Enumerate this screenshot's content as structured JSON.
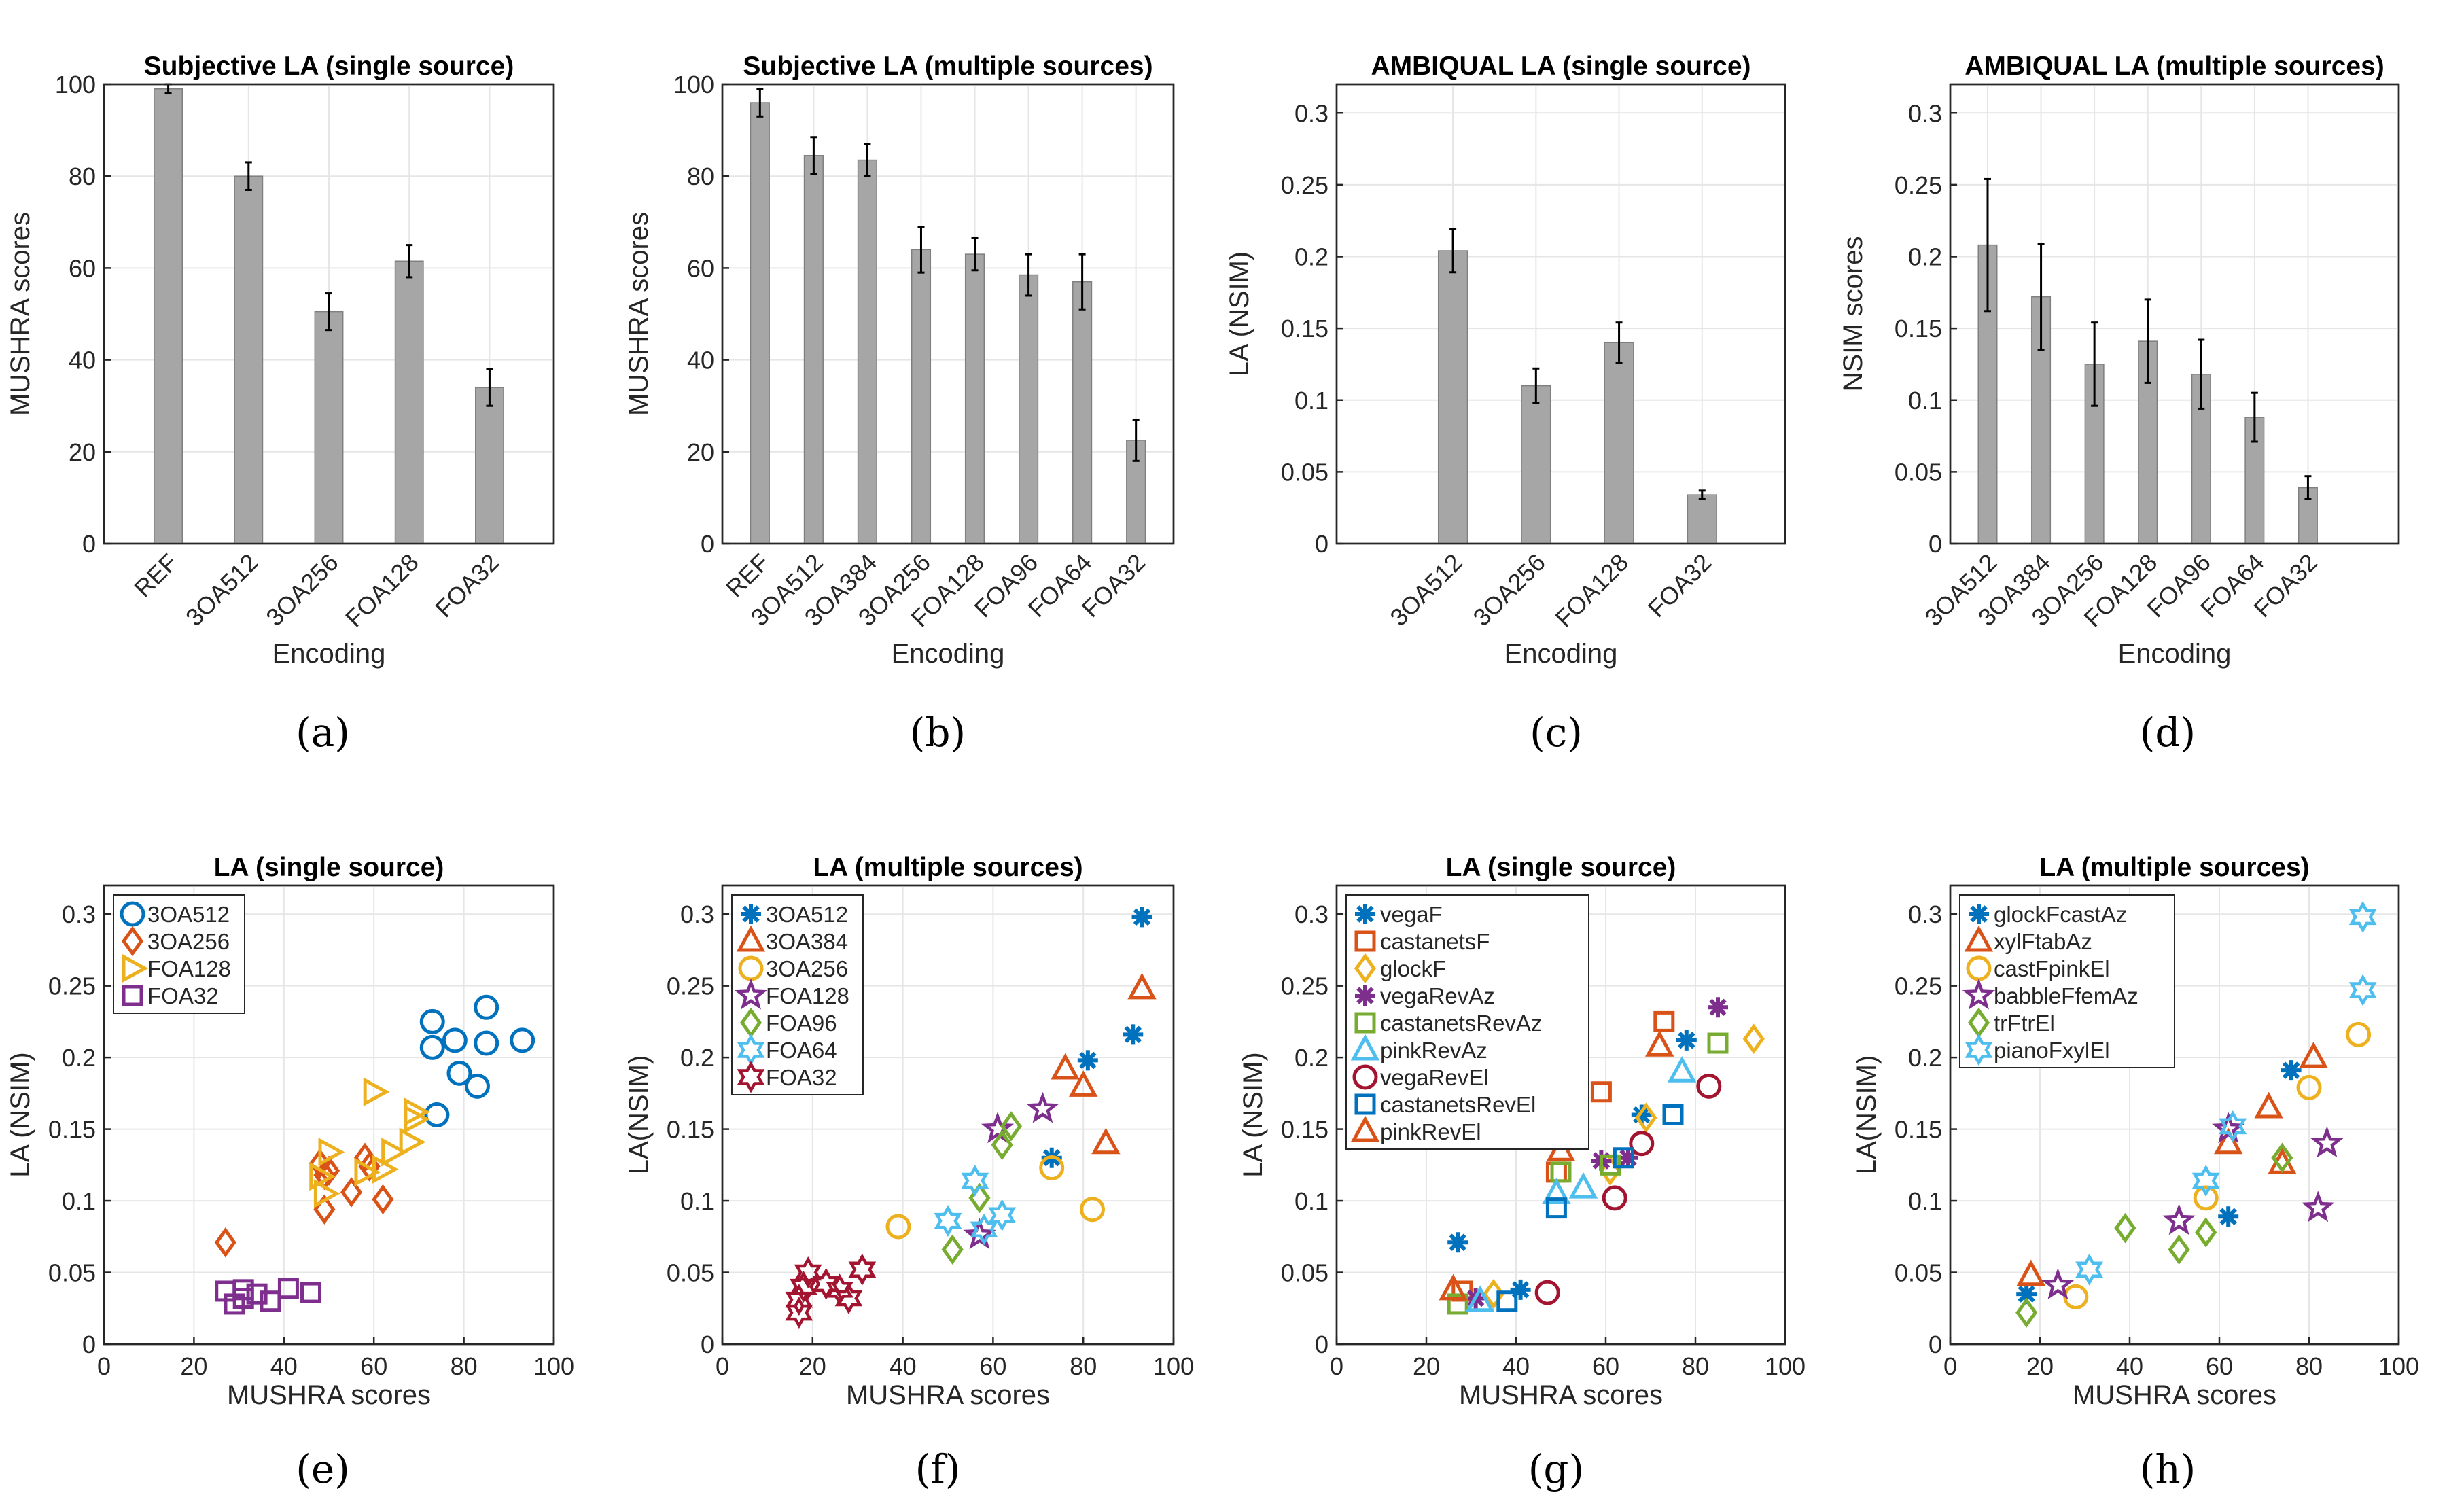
{
  "figure_labels": [
    "(a)",
    "(b)",
    "(c)",
    "(d)",
    "(e)",
    "(f)",
    "(g)",
    "(h)"
  ],
  "colors": {
    "bar": "#a6a6a6",
    "barEdge": "#7f7f7f",
    "axis": "#262626",
    "grid": "#e6e6e6",
    "text": "#262626",
    "c1": "#0072bd",
    "c2": "#d95319",
    "c3": "#edb120",
    "c4": "#7e2f8e",
    "c5": "#77ac30",
    "c6": "#4dbeee",
    "c7": "#a2142f"
  },
  "chart_data": [
    {
      "type": "bar",
      "title": "Subjective LA (single source)",
      "xlabel": "Encoding",
      "ylabel": "MUSHRA scores",
      "ylim": [
        0,
        100
      ],
      "yticks": [
        0,
        20,
        40,
        60,
        80,
        100
      ],
      "ytick_labels": [
        "0",
        "20",
        "40",
        "60",
        "80",
        "100"
      ],
      "categories": [
        "REF",
        "3OA512",
        "3OA256",
        "FOA128",
        "FOA32"
      ],
      "values": [
        99,
        80,
        50.5,
        61.5,
        34
      ],
      "errors": [
        1,
        3,
        4,
        3.5,
        4
      ],
      "xcat_range": [
        0.2,
        5.8
      ],
      "rotate_ticks": true
    },
    {
      "type": "bar",
      "title": "Subjective LA (multiple sources)",
      "xlabel": "Encoding",
      "ylabel": "MUSHRA scores",
      "ylim": [
        0,
        100
      ],
      "yticks": [
        0,
        20,
        40,
        60,
        80,
        100
      ],
      "ytick_labels": [
        "0",
        "20",
        "40",
        "60",
        "80",
        "100"
      ],
      "categories": [
        "REF",
        "3OA512",
        "3OA384",
        "3OA256",
        "FOA128",
        "FOA96",
        "FOA64",
        "FOA32"
      ],
      "values": [
        96,
        84.5,
        83.5,
        64,
        63,
        58.5,
        57,
        22.5
      ],
      "errors": [
        3,
        4,
        3.5,
        5,
        3.5,
        4.5,
        6,
        4.5
      ],
      "xcat_range": [
        0.3,
        8.7
      ],
      "rotate_ticks": true
    },
    {
      "type": "bar",
      "title": "AMBIQUAL LA (single source)",
      "xlabel": "Encoding",
      "ylabel": "LA (NSIM)",
      "ylim": [
        0,
        0.32
      ],
      "yticks": [
        0,
        0.05,
        0.1,
        0.15,
        0.2,
        0.25,
        0.3
      ],
      "ytick_labels": [
        "0",
        "0.05",
        "0.1",
        "0.15",
        "0.2",
        "0.25",
        "0.3"
      ],
      "categories": [
        "3OA512",
        "3OA256",
        "FOA128",
        "FOA32"
      ],
      "values": [
        0.204,
        0.11,
        0.14,
        0.034
      ],
      "errors": [
        0.015,
        0.012,
        0.014,
        0.003
      ],
      "xcat_range": [
        -0.4,
        5.0
      ],
      "rotate_ticks": true
    },
    {
      "type": "bar",
      "title": "AMBIQUAL LA (multiple sources)",
      "xlabel": "Encoding",
      "ylabel": "NSIM scores",
      "ylim": [
        0,
        0.32
      ],
      "yticks": [
        0,
        0.05,
        0.1,
        0.15,
        0.2,
        0.25,
        0.3
      ],
      "ytick_labels": [
        "0",
        "0.05",
        "0.1",
        "0.15",
        "0.2",
        "0.25",
        "0.3"
      ],
      "categories": [
        "3OA512",
        "3OA384",
        "3OA256",
        "FOA128",
        "FOA96",
        "FOA64",
        "FOA32"
      ],
      "values": [
        0.208,
        0.172,
        0.125,
        0.141,
        0.118,
        0.088,
        0.039
      ],
      "errors": [
        0.046,
        0.037,
        0.029,
        0.029,
        0.024,
        0.017,
        0.008
      ],
      "xcat_range": [
        0.3,
        8.7
      ],
      "rotate_ticks": true
    },
    {
      "type": "scatter",
      "title": "LA (single source)",
      "xlabel": "MUSHRA scores",
      "ylabel": "LA (NSIM)",
      "xlim": [
        0,
        100
      ],
      "ylim": [
        0,
        0.32
      ],
      "xticks": [
        0,
        20,
        40,
        60,
        80,
        100
      ],
      "xtick_labels": [
        "0",
        "20",
        "40",
        "60",
        "80",
        "100"
      ],
      "yticks": [
        0,
        0.05,
        0.1,
        0.15,
        0.2,
        0.25,
        0.3
      ],
      "ytick_labels": [
        "0",
        "0.05",
        "0.1",
        "0.15",
        "0.2",
        "0.25",
        "0.3"
      ],
      "legend_position": "top-left",
      "series": [
        {
          "name": "3OA512",
          "marker": "circle",
          "color": "#0072bd",
          "x": [
            73,
            73,
            74,
            78,
            79,
            83,
            85,
            85,
            93
          ],
          "y": [
            0.225,
            0.207,
            0.16,
            0.212,
            0.189,
            0.18,
            0.235,
            0.21,
            0.212
          ]
        },
        {
          "name": "3OA256",
          "marker": "diamond",
          "color": "#d95319",
          "x": [
            27,
            48,
            49,
            49,
            50,
            55,
            58,
            59,
            62
          ],
          "y": [
            0.071,
            0.126,
            0.118,
            0.094,
            0.121,
            0.106,
            0.13,
            0.124,
            0.101
          ]
        },
        {
          "name": "FOA128",
          "marker": "triangle-right",
          "color": "#edb120",
          "x": [
            48,
            49,
            50,
            58,
            60,
            62,
            64,
            68,
            69,
            69
          ],
          "y": [
            0.117,
            0.105,
            0.134,
            0.12,
            0.176,
            0.122,
            0.134,
            0.141,
            0.162,
            0.157
          ]
        },
        {
          "name": "FOA32",
          "marker": "square",
          "color": "#7e2f8e",
          "x": [
            27,
            29,
            31,
            31,
            34,
            37,
            41,
            46
          ],
          "y": [
            0.037,
            0.028,
            0.038,
            0.032,
            0.035,
            0.03,
            0.039,
            0.036
          ]
        }
      ]
    },
    {
      "type": "scatter",
      "title": "LA (multiple sources)",
      "xlabel": "MUSHRA scores",
      "ylabel": "LA(NSIM)",
      "xlim": [
        0,
        100
      ],
      "ylim": [
        0,
        0.32
      ],
      "xticks": [
        0,
        20,
        40,
        60,
        80,
        100
      ],
      "xtick_labels": [
        "0",
        "20",
        "40",
        "60",
        "80",
        "100"
      ],
      "yticks": [
        0,
        0.05,
        0.1,
        0.15,
        0.2,
        0.25,
        0.3
      ],
      "ytick_labels": [
        "0",
        "0.05",
        "0.1",
        "0.15",
        "0.2",
        "0.25",
        "0.3"
      ],
      "legend_position": "top-left",
      "series": [
        {
          "name": "3OA512",
          "marker": "asterisk",
          "color": "#0072bd",
          "x": [
            73,
            81,
            91,
            93
          ],
          "y": [
            0.13,
            0.198,
            0.216,
            0.298
          ]
        },
        {
          "name": "3OA384",
          "marker": "triangle-up",
          "color": "#d95319",
          "x": [
            76,
            80,
            85,
            93
          ],
          "y": [
            0.192,
            0.18,
            0.14,
            0.248
          ]
        },
        {
          "name": "3OA256",
          "marker": "circle",
          "color": "#edb120",
          "x": [
            39,
            73,
            82
          ],
          "y": [
            0.082,
            0.123,
            0.094
          ]
        },
        {
          "name": "FOA128",
          "marker": "star",
          "color": "#7e2f8e",
          "x": [
            57,
            61,
            71
          ],
          "y": [
            0.076,
            0.15,
            0.164
          ]
        },
        {
          "name": "FOA96",
          "marker": "diamond",
          "color": "#77ac30",
          "x": [
            51,
            57,
            62,
            64
          ],
          "y": [
            0.066,
            0.102,
            0.139,
            0.152
          ]
        },
        {
          "name": "FOA64",
          "marker": "hexagram",
          "color": "#4dbeee",
          "x": [
            50,
            56,
            58,
            62
          ],
          "y": [
            0.086,
            0.114,
            0.08,
            0.09
          ]
        },
        {
          "name": "FOA32",
          "marker": "hexagram",
          "color": "#a2142f",
          "x": [
            17,
            17,
            18,
            19,
            23,
            26,
            28,
            31
          ],
          "y": [
            0.022,
            0.031,
            0.04,
            0.05,
            0.042,
            0.038,
            0.032,
            0.052
          ]
        }
      ]
    },
    {
      "type": "scatter",
      "title": "LA (single source)",
      "xlabel": "MUSHRA scores",
      "ylabel": "LA (NSIM)",
      "xlim": [
        0,
        100
      ],
      "ylim": [
        0,
        0.32
      ],
      "xticks": [
        0,
        20,
        40,
        60,
        80,
        100
      ],
      "xtick_labels": [
        "0",
        "20",
        "40",
        "60",
        "80",
        "100"
      ],
      "yticks": [
        0,
        0.05,
        0.1,
        0.15,
        0.2,
        0.25,
        0.3
      ],
      "ytick_labels": [
        "0",
        "0.05",
        "0.1",
        "0.15",
        "0.2",
        "0.25",
        "0.3"
      ],
      "legend_position": "top-left",
      "series": [
        {
          "name": "vegaF",
          "marker": "asterisk",
          "color": "#0072bd",
          "x": [
            27,
            41,
            68,
            78
          ],
          "y": [
            0.071,
            0.038,
            0.16,
            0.212
          ]
        },
        {
          "name": "castanetsF",
          "marker": "square",
          "color": "#d95319",
          "x": [
            28,
            49,
            59,
            73
          ],
          "y": [
            0.037,
            0.12,
            0.176,
            0.225
          ]
        },
        {
          "name": "glockF",
          "marker": "diamond",
          "color": "#edb120",
          "x": [
            35,
            61,
            69,
            93
          ],
          "y": [
            0.035,
            0.121,
            0.158,
            0.213
          ]
        },
        {
          "name": "vegaRevAz",
          "marker": "asterisk",
          "color": "#7e2f8e",
          "x": [
            31,
            59,
            65,
            85
          ],
          "y": [
            0.032,
            0.128,
            0.13,
            0.235
          ]
        },
        {
          "name": "castanetsRevAz",
          "marker": "square",
          "color": "#77ac30",
          "x": [
            27,
            50,
            61,
            85
          ],
          "y": [
            0.028,
            0.12,
            0.125,
            0.21
          ]
        },
        {
          "name": "pinkRevAz",
          "marker": "triangle-up",
          "color": "#4dbeee",
          "x": [
            32,
            49,
            55,
            77
          ],
          "y": [
            0.03,
            0.105,
            0.109,
            0.19
          ]
        },
        {
          "name": "vegaRevEl",
          "marker": "circle",
          "color": "#a2142f",
          "x": [
            47,
            62,
            68,
            83
          ],
          "y": [
            0.036,
            0.102,
            0.14,
            0.18
          ]
        },
        {
          "name": "castanetsRevEl",
          "marker": "square",
          "color": "#0072bd",
          "x": [
            38,
            49,
            64,
            75
          ],
          "y": [
            0.03,
            0.095,
            0.13,
            0.16
          ]
        },
        {
          "name": "pinkRevEl",
          "marker": "triangle-up",
          "color": "#d95319",
          "x": [
            26,
            50,
            72
          ],
          "y": [
            0.038,
            0.135,
            0.208
          ]
        }
      ]
    },
    {
      "type": "scatter",
      "title": "LA (multiple sources)",
      "xlabel": "MUSHRA scores",
      "ylabel": "LA(NSIM)",
      "xlim": [
        0,
        100
      ],
      "ylim": [
        0,
        0.32
      ],
      "xticks": [
        0,
        20,
        40,
        60,
        80,
        100
      ],
      "xtick_labels": [
        "0",
        "20",
        "40",
        "60",
        "80",
        "100"
      ],
      "yticks": [
        0,
        0.05,
        0.1,
        0.15,
        0.2,
        0.25,
        0.3
      ],
      "ytick_labels": [
        "0",
        "0.05",
        "0.1",
        "0.15",
        "0.2",
        "0.25",
        "0.3"
      ],
      "legend_position": "top-left",
      "series": [
        {
          "name": "glockFcastAz",
          "marker": "asterisk",
          "color": "#0072bd",
          "x": [
            17,
            62,
            76
          ],
          "y": [
            0.035,
            0.089,
            0.191
          ]
        },
        {
          "name": "xylFtabAz",
          "marker": "triangle-up",
          "color": "#d95319",
          "x": [
            18,
            62,
            71,
            74,
            81
          ],
          "y": [
            0.048,
            0.14,
            0.165,
            0.126,
            0.2
          ]
        },
        {
          "name": "castFpinkEl",
          "marker": "circle",
          "color": "#edb120",
          "x": [
            28,
            57,
            80,
            91
          ],
          "y": [
            0.033,
            0.102,
            0.179,
            0.216
          ]
        },
        {
          "name": "babbleFfemAz",
          "marker": "star",
          "color": "#7e2f8e",
          "x": [
            24,
            51,
            62,
            82,
            84
          ],
          "y": [
            0.041,
            0.086,
            0.15,
            0.095,
            0.14
          ]
        },
        {
          "name": "trFtrEl",
          "marker": "diamond",
          "color": "#77ac30",
          "x": [
            17,
            39,
            51,
            57,
            74
          ],
          "y": [
            0.022,
            0.081,
            0.066,
            0.078,
            0.13
          ]
        },
        {
          "name": "pianoFxylEl",
          "marker": "hexagram",
          "color": "#4dbeee",
          "x": [
            31,
            57,
            63,
            92,
            92
          ],
          "y": [
            0.052,
            0.114,
            0.152,
            0.247,
            0.298
          ]
        }
      ]
    }
  ]
}
